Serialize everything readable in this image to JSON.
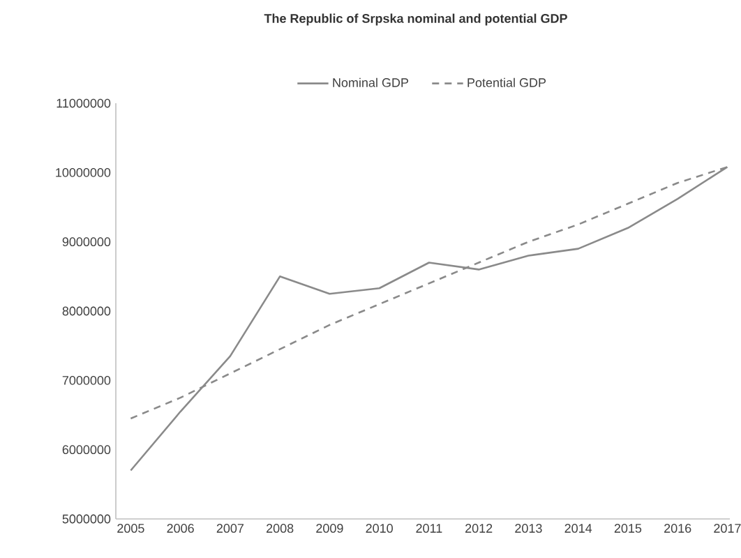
{
  "chart_data": {
    "type": "line",
    "title": "The Republic of Srpska nominal and potential GDP",
    "categories": [
      "2005",
      "2006",
      "2007",
      "2008",
      "2009",
      "2010",
      "2011",
      "2012",
      "2013",
      "2014",
      "2015",
      "2016",
      "2017"
    ],
    "series": [
      {
        "name": "Nominal GDP",
        "color": "#8a8a8a",
        "line_style": "solid",
        "values": [
          5700000,
          6550000,
          7350000,
          8500000,
          8250000,
          8330000,
          8700000,
          8600000,
          8800000,
          8900000,
          9200000,
          9620000,
          10080000
        ]
      },
      {
        "name": "Potential GDP",
        "color": "#8a8a8a",
        "line_style": "dashed",
        "values": [
          6450000,
          6750000,
          7100000,
          7450000,
          7800000,
          8100000,
          8400000,
          8700000,
          9000000,
          9250000,
          9550000,
          9850000,
          10080000
        ]
      }
    ],
    "ylim": [
      5000000,
      11000000
    ],
    "yticks": [
      5000000,
      6000000,
      7000000,
      8000000,
      9000000,
      10000000,
      11000000
    ],
    "grid": false,
    "legend": "top",
    "marker": "none"
  }
}
